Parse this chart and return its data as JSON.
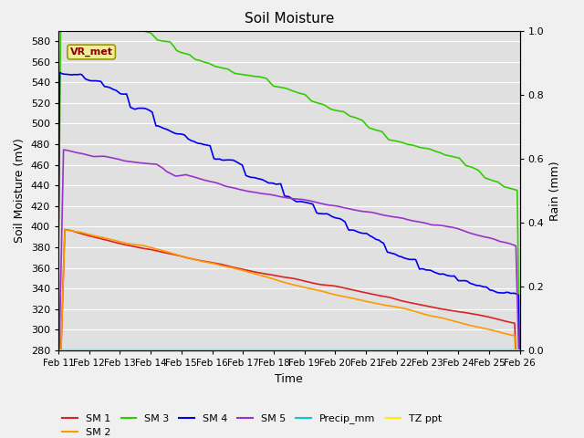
{
  "title": "Soil Moisture",
  "xlabel": "Time",
  "ylabel_left": "Soil Moisture (mV)",
  "ylabel_right": "Rain (mm)",
  "xlim": [
    0,
    15
  ],
  "ylim_left": [
    280,
    590
  ],
  "ylim_right": [
    0.0,
    1.0
  ],
  "x_tick_labels": [
    "Feb 11",
    "Feb 12",
    "Feb 13",
    "Feb 14",
    "Feb 15",
    "Feb 16",
    "Feb 17",
    "Feb 18",
    "Feb 19",
    "Feb 20",
    "Feb 21",
    "Feb 22",
    "Feb 23",
    "Feb 24",
    "Feb 25",
    "Feb 26"
  ],
  "y_ticks_left": [
    280,
    300,
    320,
    340,
    360,
    380,
    400,
    420,
    440,
    460,
    480,
    500,
    520,
    540,
    560,
    580
  ],
  "y_ticks_right": [
    0.0,
    0.2,
    0.4,
    0.6,
    0.8,
    1.0
  ],
  "fig_facecolor": "#f0f0f0",
  "plot_facecolor": "#e0e0e0",
  "grid_color": "#ffffff",
  "sm1_color": "#dd2222",
  "sm2_color": "#ff9900",
  "sm3_color": "#33cc00",
  "sm4_color": "#0000ee",
  "sm5_color": "#9933cc",
  "precip_color": "#00cccc",
  "tzppt_color": "#ffee00",
  "vr_met_bg": "#eeee99",
  "vr_met_border": "#999900",
  "vr_met_text": "#880000",
  "legend_labels": [
    "SM 1",
    "SM 2",
    "SM 3",
    "SM 4",
    "SM 5",
    "Precip_mm",
    "TZ ppt"
  ]
}
